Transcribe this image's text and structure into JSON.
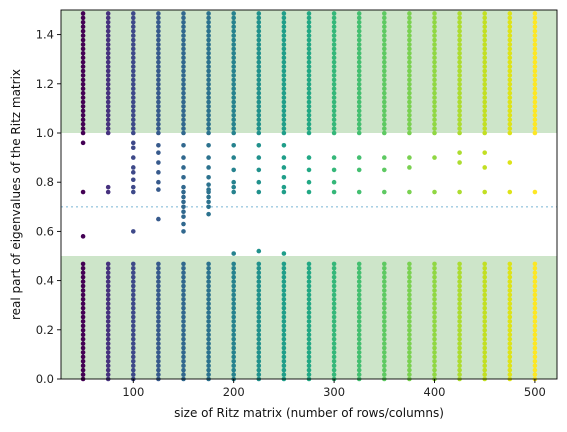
{
  "chart_data": {
    "type": "scatter",
    "xlabel": "size of Ritz matrix (number of rows/columns)",
    "ylabel": "real part of eigenvalues of the Ritz matrix",
    "xlim": [
      28,
      522
    ],
    "ylim": [
      0.0,
      1.5
    ],
    "x_ticks": [
      100,
      200,
      300,
      400,
      500
    ],
    "y_ticks": [
      0.0,
      0.2,
      0.4,
      0.6,
      0.8,
      1.0,
      1.2,
      1.4
    ],
    "x_tick_labels": [
      "100",
      "200",
      "300",
      "400",
      "500"
    ],
    "y_tick_labels": [
      "0.0",
      "0.2",
      "0.4",
      "0.6",
      "0.8",
      "1.0",
      "1.2",
      "1.4"
    ],
    "grid": false,
    "legend": "none",
    "shaded_bands": [
      {
        "ymin": 0.0,
        "ymax": 0.5,
        "color": "#cde5c9"
      },
      {
        "ymin": 1.0,
        "ymax": 1.5,
        "color": "#cde5c9"
      }
    ],
    "reference_line": {
      "y": 0.7,
      "style": "dotted",
      "color": "#9ecae1"
    },
    "colormap": "viridis",
    "series": [
      {
        "x": 50,
        "color": "#440154",
        "outliers": [
          0.96,
          0.76,
          0.58
        ]
      },
      {
        "x": 75,
        "color": "#46327e",
        "outliers": [
          0.78,
          0.76
        ]
      },
      {
        "x": 100,
        "color": "#3e4989",
        "outliers": [
          0.96,
          0.94,
          0.9,
          0.86,
          0.84,
          0.81,
          0.78,
          0.76,
          0.6
        ]
      },
      {
        "x": 125,
        "color": "#375a8c",
        "outliers": [
          0.95,
          0.92,
          0.88,
          0.84,
          0.8,
          0.77,
          0.65
        ]
      },
      {
        "x": 150,
        "color": "#31688e",
        "outliers": [
          0.95,
          0.9,
          0.86,
          0.82,
          0.78,
          0.76,
          0.74,
          0.72,
          0.7,
          0.68,
          0.66,
          0.63,
          0.6
        ]
      },
      {
        "x": 175,
        "color": "#2c728e",
        "outliers": [
          0.95,
          0.9,
          0.86,
          0.82,
          0.79,
          0.77,
          0.76,
          0.74,
          0.72,
          0.7,
          0.67
        ]
      },
      {
        "x": 200,
        "color": "#26828e",
        "outliers": [
          0.95,
          0.9,
          0.85,
          0.8,
          0.78,
          0.76,
          0.51
        ]
      },
      {
        "x": 225,
        "color": "#21918c",
        "outliers": [
          0.95,
          0.9,
          0.85,
          0.8,
          0.76,
          0.52
        ]
      },
      {
        "x": 250,
        "color": "#1f9e89",
        "outliers": [
          0.95,
          0.9,
          0.86,
          0.82,
          0.78,
          0.76,
          0.51
        ]
      },
      {
        "x": 275,
        "color": "#22a884",
        "outliers": [
          0.9,
          0.85,
          0.8,
          0.76
        ]
      },
      {
        "x": 300,
        "color": "#35b779",
        "outliers": [
          0.9,
          0.85,
          0.8,
          0.76
        ]
      },
      {
        "x": 325,
        "color": "#44bf70",
        "outliers": [
          0.9,
          0.85,
          0.76
        ]
      },
      {
        "x": 350,
        "color": "#5ec962",
        "outliers": [
          0.9,
          0.85,
          0.76
        ]
      },
      {
        "x": 375,
        "color": "#7ad151",
        "outliers": [
          0.9,
          0.86,
          0.76
        ]
      },
      {
        "x": 400,
        "color": "#90d743",
        "outliers": [
          0.9,
          0.76
        ]
      },
      {
        "x": 425,
        "color": "#addc30",
        "outliers": [
          0.92,
          0.88,
          0.76
        ]
      },
      {
        "x": 450,
        "color": "#c2df23",
        "outliers": [
          0.92,
          0.86,
          0.76
        ]
      },
      {
        "x": 475,
        "color": "#dde318",
        "outliers": [
          0.88,
          0.76
        ]
      },
      {
        "x": 500,
        "color": "#fde725",
        "outliers": [
          0.76
        ]
      }
    ]
  }
}
